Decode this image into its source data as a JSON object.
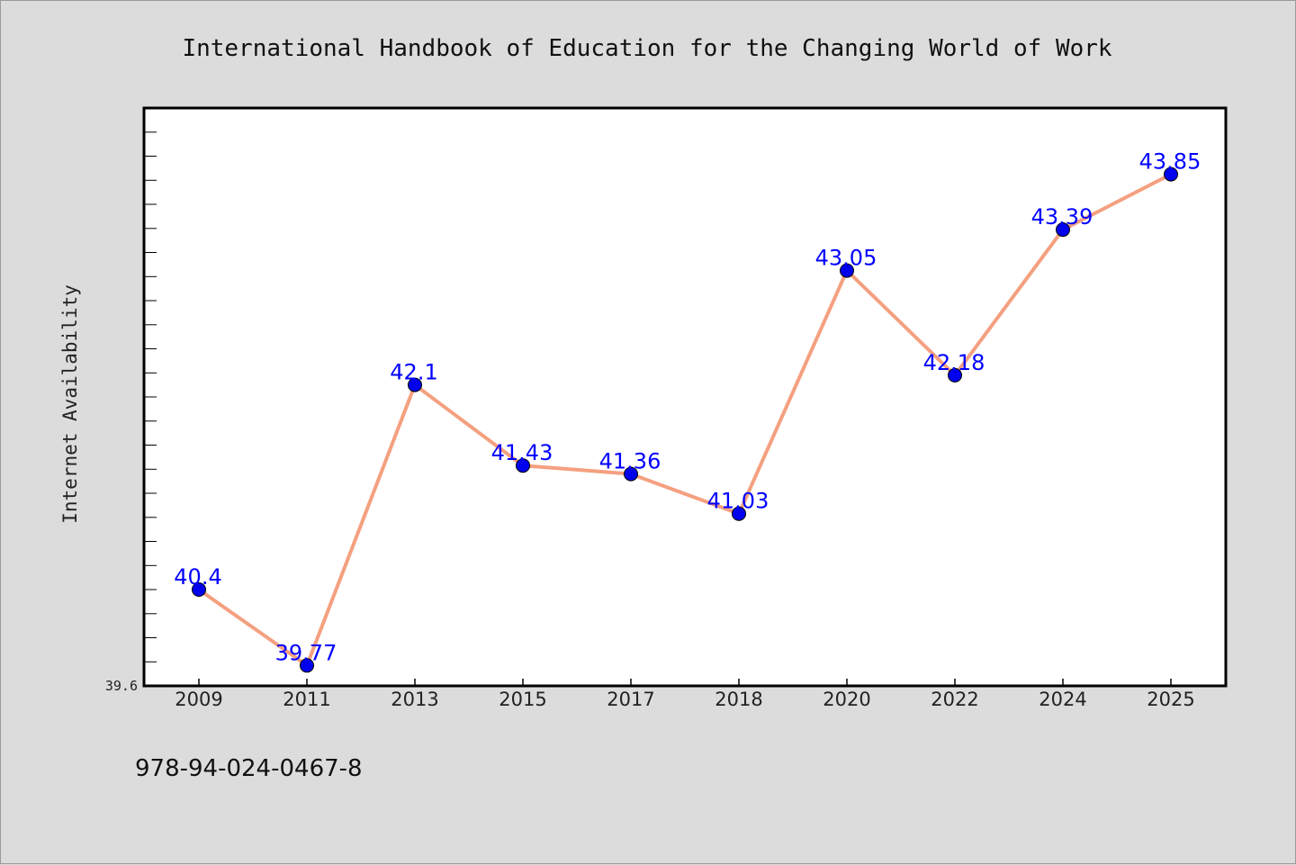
{
  "chart_data": {
    "type": "line",
    "title": "International Handbook of Education for the Changing World of Work",
    "ylabel": "Internet Availability",
    "xlabel": "",
    "categories": [
      "2009",
      "2011",
      "2013",
      "2015",
      "2017",
      "2018",
      "2020",
      "2022",
      "2024",
      "2025"
    ],
    "series": [
      {
        "values": [
          40.4,
          39.77,
          42.1,
          41.43,
          41.36,
          41.03,
          43.05,
          42.18,
          43.39,
          43.85
        ],
        "labels": [
          "40.4",
          "39.77",
          "42.1",
          "41.43",
          "41.36",
          "41.03",
          "43.05",
          "42.18",
          "43.39",
          "43.85"
        ],
        "line_color": "#f4a080",
        "marker_color": "#0000ee",
        "label_color": "#0000ff"
      }
    ],
    "ylim": [
      39.6,
      44.4
    ],
    "ytick_labels": [
      "39.6"
    ],
    "grid": false,
    "legend": "none"
  },
  "footer": {
    "isbn": "978-94-024-0467-8"
  }
}
